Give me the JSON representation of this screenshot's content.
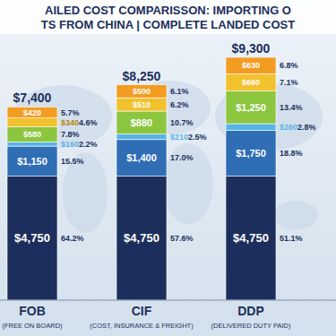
{
  "chart_data": {
    "type": "bar",
    "stacked": true,
    "data_labels": true,
    "tick_labels": false,
    "grid": false,
    "title": "AILED COST COMPARISSON: IMPORTING O",
    "subtitle": "TS FROM CHINA | COMPLETE LANDED COST",
    "categories": [
      "FOB",
      "CIF",
      "DDP"
    ],
    "category_notes": [
      "(FREE ON BOARD)",
      "(COST, INSURANCE & FREIGHT)",
      "(DELIVERED DUTY PAID)"
    ],
    "ylim": [
      0,
      9300
    ],
    "yticks": [],
    "totals": [
      7400,
      8250,
      9300
    ],
    "total_labels": [
      "$7,400",
      "$8,250",
      "$9,300"
    ],
    "series": [
      {
        "color": "#1c2f5c",
        "values": [
          4750,
          4750,
          4750
        ],
        "value_labels": [
          "$4,750",
          "$4,750",
          "$4,750"
        ],
        "percents": [
          64.2,
          57.6,
          51.1
        ],
        "percent_labels": [
          "64.2%",
          "57.6%",
          "51.1%"
        ]
      },
      {
        "color": "#2f6db5",
        "values": [
          1150,
          1400,
          1750
        ],
        "value_labels": [
          "$1,150",
          "$1,400",
          "$1,750"
        ],
        "percents": [
          15.5,
          17.0,
          18.8
        ],
        "percent_labels": [
          "15.5%",
          "17.0%",
          "18.8%"
        ]
      },
      {
        "color": "#5ab4e6",
        "values": [
          160,
          210,
          260
        ],
        "value_labels": [
          "$160",
          "$210",
          "$260"
        ],
        "percents": [
          2.2,
          2.5,
          2.8
        ],
        "percent_labels": [
          "2.2%",
          "2.5%",
          "2.8%"
        ]
      },
      {
        "color": "#8cc63f",
        "values": [
          580,
          880,
          1250
        ],
        "value_labels": [
          "$580",
          "$880",
          "$1,250"
        ],
        "percents": [
          7.8,
          10.7,
          13.4
        ],
        "percent_labels": [
          "7.8%",
          "10.7%",
          "13.4%"
        ]
      },
      {
        "color": "#f2c12e",
        "values": [
          340,
          510,
          660
        ],
        "value_labels": [
          "$340",
          "$510",
          "$660"
        ],
        "percents": [
          4.6,
          6.2,
          7.1
        ],
        "percent_labels": [
          "4.6%",
          "6.2%",
          "7.1%"
        ]
      },
      {
        "color": "#f39c22",
        "values": [
          420,
          500,
          630
        ],
        "value_labels": [
          "$420",
          "$500",
          "$630"
        ],
        "percents": [
          5.7,
          6.1,
          6.8
        ],
        "percent_labels": [
          "5.7%",
          "6.1%",
          "6.8%"
        ]
      }
    ]
  }
}
